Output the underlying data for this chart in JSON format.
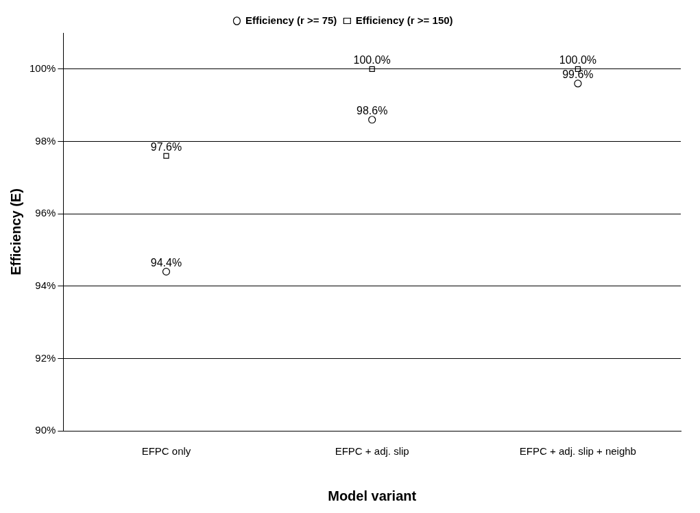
{
  "chart_data": {
    "type": "scatter",
    "xlabel": "Model variant",
    "ylabel": "Efficiency (E)",
    "categories": [
      "EFPC only",
      "EFPC + adj. slip",
      "EFPC + adj. slip + neighb"
    ],
    "series": [
      {
        "name": "Efficiency (r >= 75)",
        "color": "#000000",
        "marker": "circle",
        "x": [
          "EFPC only",
          "EFPC + adj. slip",
          "EFPC + adj. slip + neighb"
        ],
        "values": [
          94.4,
          98.6,
          99.6
        ],
        "value_labels": [
          "94.4%",
          "98.6%",
          "99.6%"
        ]
      },
      {
        "name": "Efficiency (r >= 150)",
        "color": "#000000",
        "marker": "square",
        "x": [
          "EFPC only",
          "EFPC + adj. slip",
          "EFPC + adj. slip + neighb"
        ],
        "values": [
          97.6,
          100.0,
          100.0
        ],
        "value_labels": [
          "97.6%",
          "100.0%",
          "100.0%"
        ]
      }
    ],
    "ylim": [
      90,
      101
    ],
    "yticks": [
      {
        "value": 90,
        "label": "90%"
      },
      {
        "value": 92,
        "label": "92%"
      },
      {
        "value": 94,
        "label": "94%"
      },
      {
        "value": 96,
        "label": "96%"
      },
      {
        "value": 98,
        "label": "98%"
      },
      {
        "value": 100,
        "label": "100%"
      }
    ],
    "grid": "y",
    "legend": "top"
  }
}
